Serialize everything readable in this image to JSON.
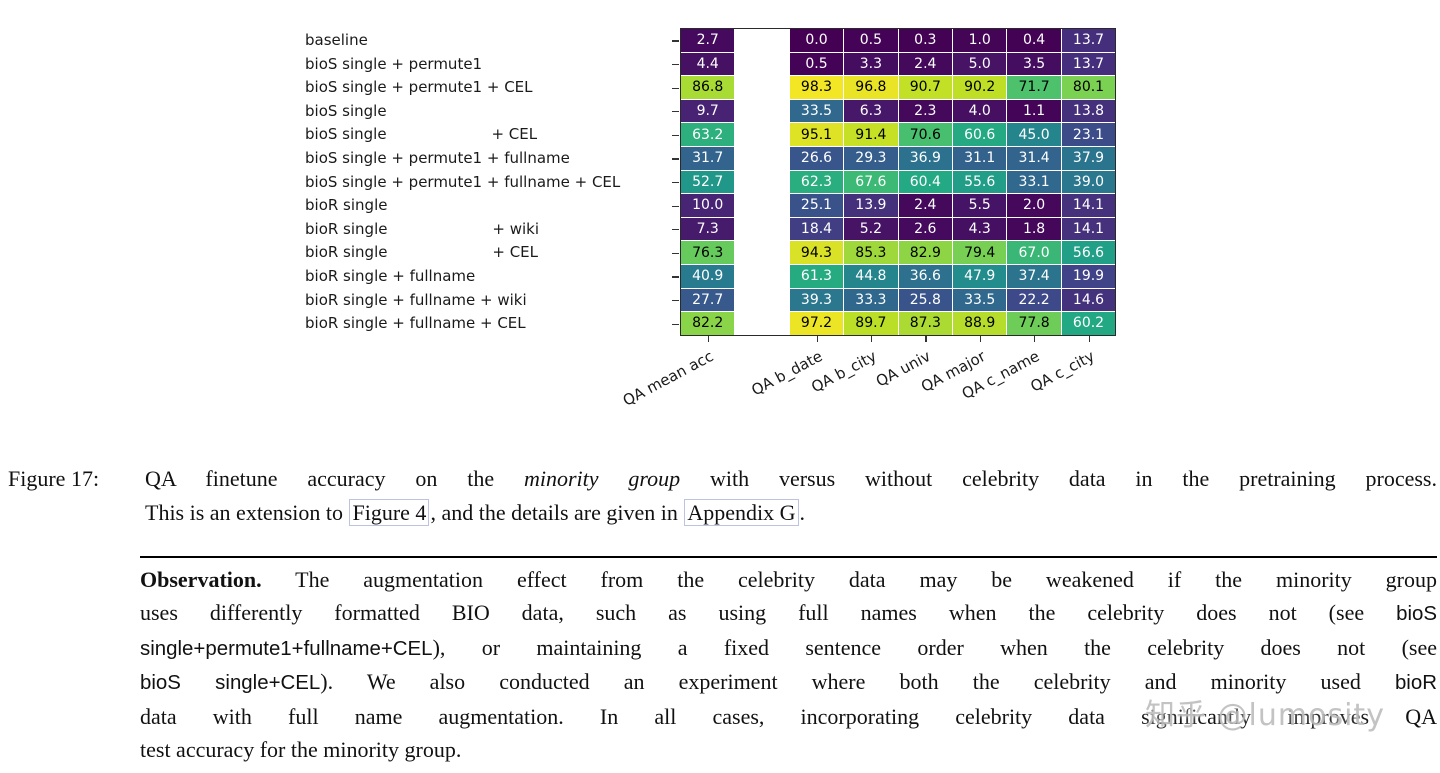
{
  "chart_data": {
    "type": "heatmap",
    "colormap": "viridis",
    "value_range": [
      0,
      100
    ],
    "column_gap_after_index": 0,
    "columns": [
      "QA mean acc",
      "QA b_date",
      "QA b_city",
      "QA univ",
      "QA major",
      "QA c_name",
      "QA c_city"
    ],
    "rows": [
      "baseline",
      "bioS single + permute1",
      "bioS single + permute1 + CEL",
      "bioS single",
      "bioS single                      + CEL",
      "bioS single + permute1 + fullname",
      "bioS single + permute1 + fullname + CEL",
      "bioR single",
      "bioR single                      + wiki",
      "bioR single                      + CEL",
      "bioR single + fullname",
      "bioR single + fullname + wiki",
      "bioR single + fullname + CEL"
    ],
    "values": [
      [
        2.7,
        0.0,
        0.5,
        0.3,
        1.0,
        0.4,
        13.7
      ],
      [
        4.4,
        0.5,
        3.3,
        2.4,
        5.0,
        3.5,
        13.7
      ],
      [
        86.8,
        98.3,
        96.8,
        90.7,
        90.2,
        71.7,
        80.1
      ],
      [
        9.7,
        33.5,
        6.3,
        2.3,
        4.0,
        1.1,
        13.8
      ],
      [
        63.2,
        95.1,
        91.4,
        70.6,
        60.6,
        45.0,
        23.1
      ],
      [
        31.7,
        26.6,
        29.3,
        36.9,
        31.1,
        31.4,
        37.9
      ],
      [
        52.7,
        62.3,
        67.6,
        60.4,
        55.6,
        33.1,
        39.0
      ],
      [
        10.0,
        25.1,
        13.9,
        2.4,
        5.5,
        2.0,
        14.1
      ],
      [
        7.3,
        18.4,
        5.2,
        2.6,
        4.3,
        1.8,
        14.1
      ],
      [
        76.3,
        94.3,
        85.3,
        82.9,
        79.4,
        67.0,
        56.6
      ],
      [
        40.9,
        61.3,
        44.8,
        36.6,
        47.9,
        37.4,
        19.9
      ],
      [
        27.7,
        39.3,
        33.3,
        25.8,
        33.5,
        22.2,
        14.6
      ],
      [
        82.2,
        97.2,
        89.7,
        87.3,
        88.9,
        77.8,
        60.2
      ]
    ]
  },
  "caption": {
    "label": "Figure 17:",
    "lines": [
      [
        {
          "t": "QA finetune accuracy on the "
        },
        {
          "t": "minority group",
          "s": "i"
        },
        {
          "t": " with versus without celebrity data in the pretraining process."
        }
      ],
      [
        {
          "t": "This is an extension to "
        },
        {
          "t": "Figure 4",
          "s": "box",
          "name": "figure-4-link"
        },
        {
          "t": ", and the details are given in "
        },
        {
          "t": "Appendix G",
          "s": "box",
          "name": "appendix-g-link"
        },
        {
          "t": "."
        }
      ]
    ]
  },
  "observation": {
    "lines": [
      [
        {
          "t": "Observation.",
          "s": "b"
        },
        {
          "t": "  The augmentation effect from the celebrity data may be weakened if the minority group"
        }
      ],
      [
        {
          "t": "uses differently formatted BIO data, such as using full names when the celebrity does not (see "
        },
        {
          "t": "bioS",
          "s": "sf"
        }
      ],
      [
        {
          "t": "single+permute1+fullname+CEL",
          "s": "sf"
        },
        {
          "t": "), or maintaining a fixed sentence order when the celebrity does not (see"
        }
      ],
      [
        {
          "t": "bioS single+CEL",
          "s": "sf"
        },
        {
          "t": "). We also conducted an experiment where both the celebrity and minority used "
        },
        {
          "t": "bioR",
          "s": "sf"
        }
      ],
      [
        {
          "t": "data with full name augmentation.  In all cases, incorporating celebrity data significantly improves QA"
        }
      ],
      [
        {
          "t": "test accuracy for the minority group."
        }
      ]
    ]
  },
  "watermark": {
    "text": "知乎 @lumosity"
  }
}
